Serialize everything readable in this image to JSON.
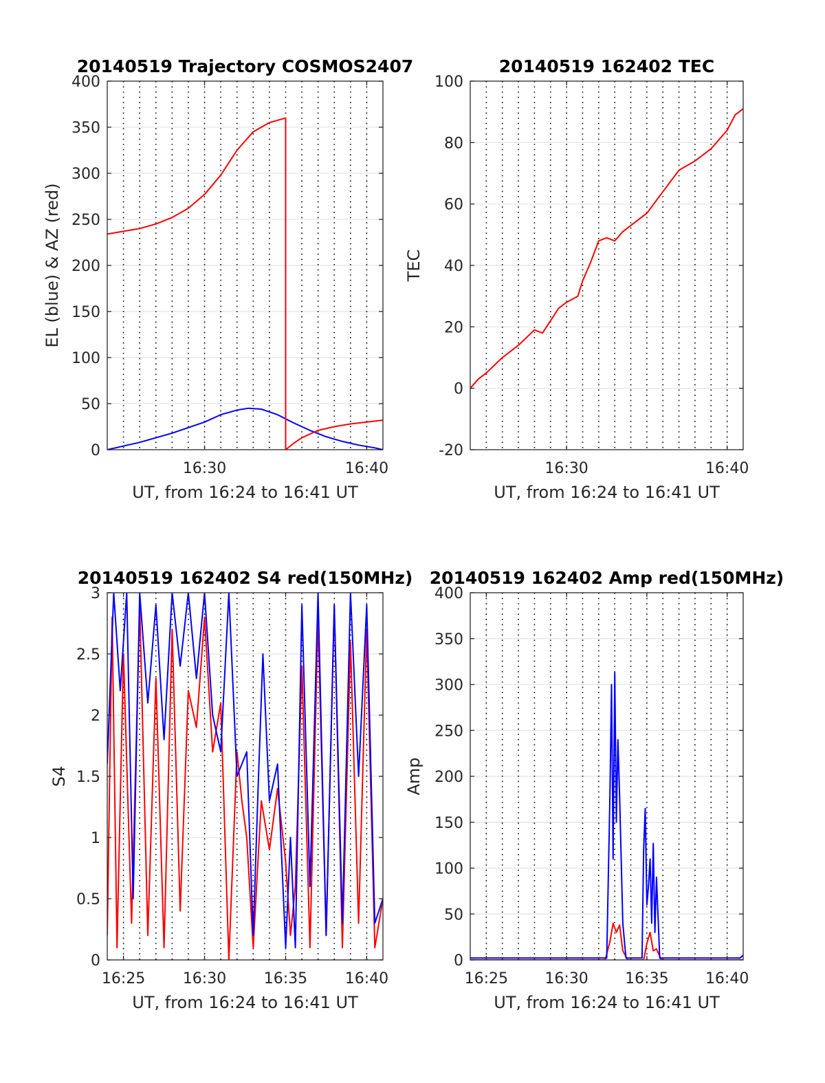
{
  "figure": {
    "panels": [
      "trajectory",
      "tec",
      "s4",
      "amp"
    ]
  },
  "chart_data": [
    {
      "id": "trajectory",
      "type": "line",
      "title": "20140519 Trajectory COSMOS2407",
      "xlabel": "UT, from 16:24 to 16:41 UT",
      "ylabel": "EL (blue) & AZ (red)",
      "xlim": [
        24,
        41
      ],
      "ylim": [
        0,
        400
      ],
      "xticks": [
        {
          "v": 30,
          "label": "16:30"
        },
        {
          "v": 40,
          "label": "16:40"
        }
      ],
      "yticks": [
        0,
        50,
        100,
        150,
        200,
        250,
        300,
        350,
        400
      ],
      "grid": "dotted vertical every 1 min, solid horizontal",
      "series": [
        {
          "name": "EL",
          "color": "#0000ff",
          "x": [
            24.0,
            26.0,
            28.0,
            30.0,
            31.0,
            32.0,
            32.7,
            33.5,
            34.5,
            35.5,
            36.5,
            37.5,
            38.5,
            39.5,
            40.5,
            41.0
          ],
          "y": [
            0,
            8,
            18,
            30,
            38,
            43,
            45,
            44,
            38,
            29,
            21,
            14,
            9,
            5,
            2,
            0
          ]
        },
        {
          "name": "AZ",
          "color": "#ff0000",
          "x": [
            24.0,
            25.0,
            26.0,
            27.0,
            28.0,
            29.0,
            30.0,
            31.0,
            32.0,
            33.0,
            34.0,
            35.0,
            35.0,
            35.5,
            36.0,
            37.0,
            38.0,
            39.0,
            40.0,
            41.0
          ],
          "y": [
            234,
            237,
            240,
            245,
            252,
            262,
            277,
            298,
            325,
            345,
            355,
            360,
            0,
            7,
            13,
            21,
            25,
            28,
            30,
            32
          ]
        }
      ]
    },
    {
      "id": "tec",
      "type": "line",
      "title": "20140519 162402 TEC",
      "xlabel": "UT, from 16:24 to 16:41 UT",
      "ylabel": "TEC",
      "xlim": [
        24,
        41
      ],
      "ylim": [
        -20,
        100
      ],
      "xticks": [
        {
          "v": 30,
          "label": "16:30"
        },
        {
          "v": 40,
          "label": "16:40"
        }
      ],
      "yticks": [
        -20,
        0,
        20,
        40,
        60,
        80,
        100
      ],
      "series": [
        {
          "name": "TEC",
          "color": "#ff0000",
          "x": [
            24.0,
            24.5,
            25.0,
            26.0,
            27.0,
            28.0,
            28.5,
            29.0,
            29.5,
            30.0,
            30.7,
            31.0,
            31.5,
            32.0,
            32.5,
            33.0,
            33.5,
            34.0,
            35.0,
            36.0,
            37.0,
            38.0,
            39.0,
            40.0,
            40.5,
            41.0
          ],
          "y": [
            0,
            3,
            5,
            10,
            14,
            19,
            18,
            22,
            26,
            28,
            30,
            35,
            41,
            48,
            49,
            48,
            51,
            53,
            57,
            64,
            71,
            74,
            78,
            84,
            89,
            91
          ]
        }
      ]
    },
    {
      "id": "s4",
      "type": "line",
      "title": "20140519 162402 S4 red(150MHz)",
      "xlabel": "UT, from 16:24 to 16:41 UT",
      "ylabel": "S4",
      "xlim": [
        24,
        41
      ],
      "ylim": [
        0,
        3
      ],
      "xticks": [
        {
          "v": 25,
          "label": "16:25"
        },
        {
          "v": 30,
          "label": "16:30"
        },
        {
          "v": 35,
          "label": "16:35"
        },
        {
          "v": 40,
          "label": "16:40"
        }
      ],
      "yticks": [
        {
          "v": 0,
          "label": "0"
        },
        {
          "v": 0.5,
          "label": "0.5"
        },
        {
          "v": 1,
          "label": "1"
        },
        {
          "v": 1.5,
          "label": "1.5"
        },
        {
          "v": 2,
          "label": "2"
        },
        {
          "v": 2.5,
          "label": "2.5"
        },
        {
          "v": 3,
          "label": "3"
        }
      ],
      "series": [
        {
          "name": "red",
          "color": "#ff0000",
          "x": [
            24.0,
            24.3,
            24.6,
            25.0,
            25.5,
            26.0,
            26.5,
            27.0,
            27.5,
            28.0,
            28.5,
            29.0,
            29.5,
            30.0,
            30.5,
            31.0,
            31.5,
            32.0,
            32.3,
            32.6,
            33.0,
            33.5,
            34.0,
            34.5,
            35.0,
            35.3,
            35.6,
            36.0,
            36.5,
            37.0,
            37.5,
            38.0,
            38.5,
            39.0,
            39.5,
            40.0,
            40.5,
            41.0
          ],
          "y": [
            0.2,
            2.8,
            0.1,
            2.5,
            0.3,
            2.9,
            0.2,
            2.3,
            0.1,
            2.7,
            0.4,
            2.2,
            1.9,
            2.8,
            1.7,
            2.1,
            0.0,
            1.7,
            1.3,
            1.0,
            0.1,
            1.3,
            0.9,
            1.4,
            0.8,
            0.2,
            0.6,
            2.4,
            0.1,
            2.8,
            0.2,
            2.9,
            0.1,
            2.6,
            0.3,
            2.7,
            0.1,
            0.5
          ]
        },
        {
          "name": "blue",
          "color": "#0000ff",
          "x": [
            24.0,
            24.4,
            24.8,
            25.2,
            25.6,
            26.0,
            26.5,
            27.0,
            27.5,
            28.0,
            28.5,
            29.0,
            29.5,
            30.0,
            30.5,
            31.0,
            31.5,
            32.0,
            32.3,
            32.6,
            33.0,
            33.3,
            33.6,
            34.0,
            34.5,
            35.0,
            35.3,
            35.6,
            36.0,
            36.5,
            37.0,
            37.5,
            38.0,
            38.5,
            39.0,
            39.5,
            40.0,
            40.5,
            41.0
          ],
          "y": [
            1.6,
            3.0,
            2.2,
            3.0,
            0.5,
            3.0,
            2.1,
            2.9,
            1.8,
            3.0,
            2.4,
            3.0,
            2.3,
            3.0,
            2.0,
            1.7,
            3.0,
            1.5,
            1.6,
            1.7,
            0.2,
            1.4,
            2.5,
            1.3,
            1.6,
            0.1,
            1.0,
            0.1,
            2.9,
            0.6,
            3.0,
            0.2,
            2.9,
            0.3,
            3.0,
            1.5,
            2.9,
            0.3,
            0.5
          ]
        }
      ]
    },
    {
      "id": "amp",
      "type": "line",
      "title": "20140519 162402 Amp red(150MHz)",
      "xlabel": "UT, from 16:24 to 16:41 UT",
      "ylabel": "Amp",
      "xlim": [
        24,
        41
      ],
      "ylim": [
        0,
        400
      ],
      "xticks": [
        {
          "v": 25,
          "label": "16:25"
        },
        {
          "v": 30,
          "label": "16:30"
        },
        {
          "v": 35,
          "label": "16:35"
        },
        {
          "v": 40,
          "label": "16:40"
        }
      ],
      "yticks": [
        0,
        50,
        100,
        150,
        200,
        250,
        300,
        350,
        400
      ],
      "series": [
        {
          "name": "red",
          "color": "#ff0000",
          "x": [
            24.0,
            32.4,
            32.7,
            32.9,
            33.1,
            33.3,
            33.5,
            33.8,
            34.8,
            35.0,
            35.2,
            35.4,
            35.6,
            35.9,
            41.0
          ],
          "y": [
            0,
            0,
            20,
            40,
            30,
            38,
            10,
            0,
            0,
            18,
            30,
            10,
            12,
            0,
            0
          ]
        },
        {
          "name": "blue",
          "color": "#0000ff",
          "x": [
            24.0,
            32.5,
            32.7,
            32.8,
            32.9,
            33.0,
            33.1,
            33.2,
            33.3,
            33.5,
            33.7,
            34.7,
            34.8,
            34.9,
            35.0,
            35.1,
            35.2,
            35.3,
            35.4,
            35.5,
            35.6,
            35.8,
            40.8,
            41.0
          ],
          "y": [
            2,
            2,
            180,
            300,
            110,
            313,
            150,
            240,
            180,
            40,
            2,
            2,
            120,
            165,
            60,
            80,
            110,
            40,
            127,
            30,
            90,
            2,
            2,
            5
          ]
        }
      ]
    }
  ]
}
